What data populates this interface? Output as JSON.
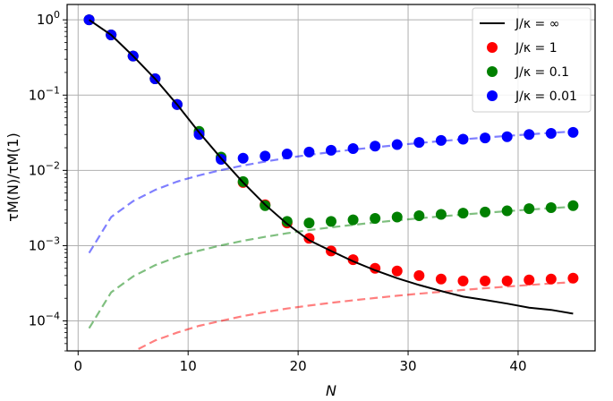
{
  "chart_data": {
    "type": "scatter",
    "xlabel": "N",
    "ylabel": "τM(N)/τM(1)",
    "xlim": [
      -1,
      47
    ],
    "ylim": [
      4e-05,
      1.6
    ],
    "yscale": "log",
    "grid": true,
    "legend_position": "top-right",
    "x_ticks": [
      0,
      10,
      20,
      30,
      40
    ],
    "y_ticks": [
      {
        "value": 1,
        "base": "10",
        "exp": "0"
      },
      {
        "value": 0.1,
        "base": "10",
        "exp": "−1"
      },
      {
        "value": 0.01,
        "base": "10",
        "exp": "−2"
      },
      {
        "value": 0.001,
        "base": "10",
        "exp": "−3"
      },
      {
        "value": 0.0001,
        "base": "10",
        "exp": "−4"
      }
    ],
    "series": [
      {
        "name": "J/κ = ∞",
        "style": "solid-line",
        "color": "#000000",
        "x": [
          1,
          3,
          5,
          7,
          9,
          11,
          13,
          15,
          17,
          19,
          21,
          23,
          25,
          27,
          29,
          31,
          33,
          35,
          37,
          39,
          41,
          43,
          45
        ],
        "y": [
          1.0,
          0.63,
          0.33,
          0.165,
          0.075,
          0.032,
          0.0145,
          0.0069,
          0.0035,
          0.00195,
          0.00118,
          0.00085,
          0.00062,
          0.00047,
          0.00037,
          0.0003,
          0.00025,
          0.00021,
          0.00019,
          0.00017,
          0.00015,
          0.00014,
          0.000125
        ]
      },
      {
        "name": "J/κ = 1",
        "style": "markers",
        "color": "#ff0000",
        "x": [
          1,
          3,
          5,
          7,
          9,
          11,
          13,
          15,
          17,
          19,
          21,
          23,
          25,
          27,
          29,
          31,
          33,
          35,
          37,
          39,
          41,
          43,
          45
        ],
        "y": [
          1.0,
          0.63,
          0.33,
          0.165,
          0.075,
          0.032,
          0.0145,
          0.0069,
          0.0035,
          0.002,
          0.00125,
          0.00085,
          0.00065,
          0.0005,
          0.00046,
          0.0004,
          0.00036,
          0.00034,
          0.00034,
          0.00034,
          0.00035,
          0.00036,
          0.00037
        ],
        "asymptote_x": [
          1,
          3,
          5,
          7,
          9,
          11,
          13,
          15,
          17,
          19,
          21,
          23,
          25,
          27,
          29,
          31,
          33,
          35,
          37,
          39,
          41,
          43,
          45
        ],
        "asymptote_y": [
          8e-06,
          2.4e-05,
          3.9e-05,
          5.5e-05,
          7e-05,
          8.6e-05,
          0.0001,
          0.000116,
          0.000131,
          0.000146,
          0.00016,
          0.000174,
          0.000188,
          0.000202,
          0.000216,
          0.00023,
          0.000244,
          0.000258,
          0.000272,
          0.000286,
          0.0003,
          0.000314,
          0.000328
        ]
      },
      {
        "name": "J/κ = 0.1",
        "style": "markers",
        "color": "#008000",
        "x": [
          1,
          3,
          5,
          7,
          9,
          11,
          13,
          15,
          17,
          19,
          21,
          23,
          25,
          27,
          29,
          31,
          33,
          35,
          37,
          39,
          41,
          43,
          45
        ],
        "y": [
          1.0,
          0.63,
          0.33,
          0.165,
          0.075,
          0.033,
          0.015,
          0.0071,
          0.0034,
          0.0021,
          0.002,
          0.0021,
          0.0022,
          0.0023,
          0.0024,
          0.0025,
          0.0026,
          0.0027,
          0.0028,
          0.0029,
          0.0031,
          0.0032,
          0.0034
        ],
        "asymptote_x": [
          1,
          3,
          5,
          7,
          9,
          11,
          13,
          15,
          17,
          19,
          21,
          23,
          25,
          27,
          29,
          31,
          33,
          35,
          37,
          39,
          41,
          43,
          45
        ],
        "asymptote_y": [
          8e-05,
          0.00024,
          0.00039,
          0.00055,
          0.00071,
          0.00086,
          0.00101,
          0.00116,
          0.00131,
          0.00146,
          0.00161,
          0.00175,
          0.00189,
          0.00203,
          0.00217,
          0.00231,
          0.00245,
          0.00259,
          0.00273,
          0.00287,
          0.00301,
          0.00315,
          0.00329
        ]
      },
      {
        "name": "J/κ = 0.01",
        "style": "markers",
        "color": "#0000ff",
        "x": [
          1,
          3,
          5,
          7,
          9,
          11,
          13,
          15,
          17,
          19,
          21,
          23,
          25,
          27,
          29,
          31,
          33,
          35,
          37,
          39,
          41,
          43,
          45
        ],
        "y": [
          1.0,
          0.63,
          0.33,
          0.165,
          0.075,
          0.03,
          0.014,
          0.0145,
          0.0155,
          0.0165,
          0.0175,
          0.0185,
          0.0195,
          0.021,
          0.022,
          0.0235,
          0.025,
          0.026,
          0.027,
          0.028,
          0.03,
          0.031,
          0.032
        ],
        "asymptote_x": [
          1,
          3,
          5,
          7,
          9,
          11,
          13,
          15,
          17,
          19,
          21,
          23,
          25,
          27,
          29,
          31,
          33,
          35,
          37,
          39,
          41,
          43,
          45
        ],
        "asymptote_y": [
          0.0008,
          0.0024,
          0.0039,
          0.0055,
          0.0071,
          0.0086,
          0.0101,
          0.0116,
          0.0131,
          0.0146,
          0.0161,
          0.0175,
          0.0189,
          0.0203,
          0.0217,
          0.0231,
          0.0245,
          0.0259,
          0.0273,
          0.0287,
          0.0301,
          0.0315,
          0.0329
        ]
      }
    ]
  }
}
